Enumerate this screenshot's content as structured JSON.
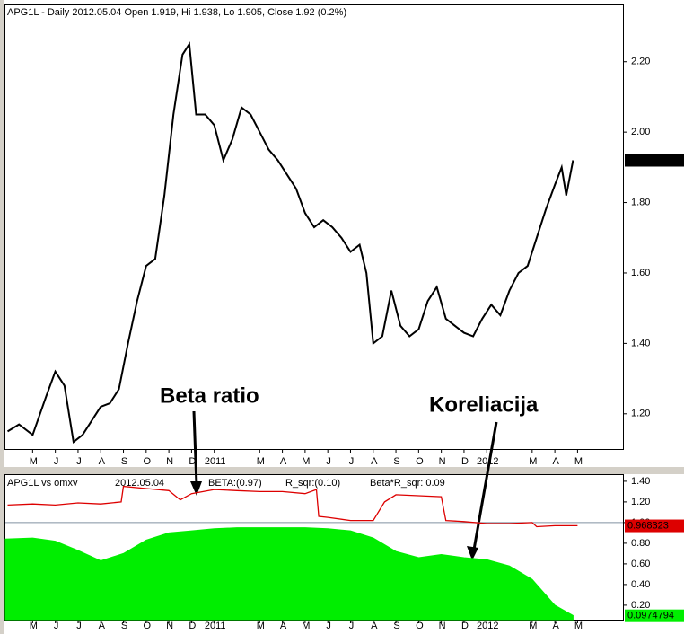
{
  "chart_data": [
    {
      "type": "line",
      "title": "APG1L - Daily 2012.05.04 Open 1.919, Hi 1.938, Lo 1.905, Close 1.92 (0.2%)",
      "annotations": [
        "Beta ratio",
        "Koreliacija"
      ],
      "xlim": [
        -1.2,
        26
      ],
      "xticks": [
        {
          "value": 0,
          "label": "M"
        },
        {
          "value": 1,
          "label": "J"
        },
        {
          "value": 2,
          "label": "J"
        },
        {
          "value": 3,
          "label": "A"
        },
        {
          "value": 4,
          "label": "S"
        },
        {
          "value": 5,
          "label": "O"
        },
        {
          "value": 6,
          "label": "N"
        },
        {
          "value": 7,
          "label": "D"
        },
        {
          "value": 8,
          "label": "2011"
        },
        {
          "value": 10,
          "label": "M"
        },
        {
          "value": 11,
          "label": "A"
        },
        {
          "value": 12,
          "label": "M"
        },
        {
          "value": 13,
          "label": "J"
        },
        {
          "value": 14,
          "label": "J"
        },
        {
          "value": 15,
          "label": "A"
        },
        {
          "value": 16,
          "label": "S"
        },
        {
          "value": 17,
          "label": "O"
        },
        {
          "value": 18,
          "label": "N"
        },
        {
          "value": 19,
          "label": "D"
        },
        {
          "value": 20,
          "label": "2012"
        },
        {
          "value": 22,
          "label": "M"
        },
        {
          "value": 23,
          "label": "A"
        },
        {
          "value": 24,
          "label": "M"
        }
      ],
      "ylim": [
        1.1,
        2.36
      ],
      "yticks": [
        {
          "value": 1.2,
          "label": "1.20"
        },
        {
          "value": 1.4,
          "label": "1.40"
        },
        {
          "value": 1.6,
          "label": "1.60"
        },
        {
          "value": 1.8,
          "label": "1.80"
        },
        {
          "value": 2.0,
          "label": "2.00"
        },
        {
          "value": 2.2,
          "label": "2.20"
        }
      ],
      "last_value": 1.92,
      "series": [
        {
          "name": "APG1L",
          "color": "#000000",
          "x": [
            -1.1,
            -0.6,
            0,
            0.6,
            1.0,
            1.4,
            1.8,
            2.2,
            2.6,
            3.0,
            3.4,
            3.8,
            4.2,
            4.6,
            5.0,
            5.4,
            5.8,
            6.2,
            6.6,
            6.9,
            7.2,
            7.6,
            8.0,
            8.4,
            8.8,
            9.2,
            9.6,
            10.0,
            10.4,
            10.8,
            11.2,
            11.6,
            12.0,
            12.4,
            12.8,
            13.2,
            13.6,
            14.0,
            14.4,
            14.7,
            15.0,
            15.4,
            15.8,
            16.2,
            16.6,
            17.0,
            17.4,
            17.8,
            18.2,
            18.6,
            19.0,
            19.4,
            19.8,
            20.2,
            20.6,
            21.0,
            21.4,
            21.8,
            22.2,
            22.6,
            23.0,
            23.3,
            23.5,
            23.8
          ],
          "values": [
            1.15,
            1.17,
            1.14,
            1.25,
            1.32,
            1.28,
            1.12,
            1.14,
            1.18,
            1.22,
            1.23,
            1.27,
            1.4,
            1.52,
            1.62,
            1.64,
            1.82,
            2.05,
            2.22,
            2.25,
            2.05,
            2.05,
            2.02,
            1.92,
            1.98,
            2.07,
            2.05,
            2.0,
            1.95,
            1.92,
            1.88,
            1.84,
            1.77,
            1.73,
            1.75,
            1.73,
            1.7,
            1.66,
            1.68,
            1.6,
            1.4,
            1.42,
            1.55,
            1.45,
            1.42,
            1.44,
            1.52,
            1.56,
            1.47,
            1.45,
            1.43,
            1.42,
            1.47,
            1.51,
            1.48,
            1.55,
            1.6,
            1.62,
            1.7,
            1.78,
            1.85,
            1.9,
            1.82,
            1.92
          ]
        }
      ]
    },
    {
      "type": "beta",
      "title": "APG1L  vs  omxv",
      "subtitle": "2012.05.04",
      "xlim": [
        -1.2,
        26
      ],
      "ylim": [
        0.06,
        1.46
      ],
      "yticks": [
        {
          "value": 0.2,
          "label": "0.20"
        },
        {
          "value": 0.4,
          "label": "0.40"
        },
        {
          "value": 0.6,
          "label": "0.60"
        },
        {
          "value": 0.8,
          "label": "0.80"
        },
        {
          "value": 1.0,
          "label": "1.00"
        },
        {
          "value": 1.2,
          "label": "1.20"
        },
        {
          "value": 1.4,
          "label": "1.40"
        }
      ],
      "reference_line": 1.0,
      "beta_r_sqr_label": "Beta*R_sqr:  0.09",
      "beta_r_sqr_color": "#0000aa",
      "series": [
        {
          "name": "BETA:(0.97)",
          "color": "#dd0000",
          "style": "line",
          "last_value": 0.968323,
          "x": [
            -1.1,
            0,
            1,
            2,
            3,
            3.9,
            4.0,
            5,
            6,
            6.5,
            7,
            8,
            9,
            10,
            11,
            12,
            12.5,
            12.6,
            13,
            14,
            15,
            15.5,
            16,
            17,
            18,
            18.2,
            19,
            20,
            21,
            22,
            22.2,
            23,
            24
          ],
          "values": [
            1.17,
            1.18,
            1.17,
            1.19,
            1.18,
            1.2,
            1.35,
            1.33,
            1.31,
            1.22,
            1.28,
            1.32,
            1.31,
            1.3,
            1.3,
            1.28,
            1.32,
            1.06,
            1.05,
            1.02,
            1.02,
            1.2,
            1.27,
            1.26,
            1.25,
            1.02,
            1.01,
            0.99,
            0.99,
            1.0,
            0.96,
            0.97,
            0.97
          ]
        },
        {
          "name": "R_sqr:(0.10)",
          "color": "#00ee00",
          "style": "area",
          "last_value": 0.0974794,
          "x": [
            -1.2,
            0,
            1,
            2,
            3,
            4,
            5,
            6,
            7,
            8,
            9,
            10,
            11,
            12,
            13,
            14,
            15,
            16,
            17,
            18,
            19,
            20,
            21,
            22,
            23,
            23.8
          ],
          "values": [
            0.84,
            0.85,
            0.82,
            0.73,
            0.63,
            0.7,
            0.83,
            0.9,
            0.92,
            0.94,
            0.95,
            0.95,
            0.95,
            0.95,
            0.94,
            0.92,
            0.85,
            0.72,
            0.66,
            0.69,
            0.66,
            0.64,
            0.58,
            0.45,
            0.2,
            0.1
          ]
        }
      ]
    }
  ]
}
